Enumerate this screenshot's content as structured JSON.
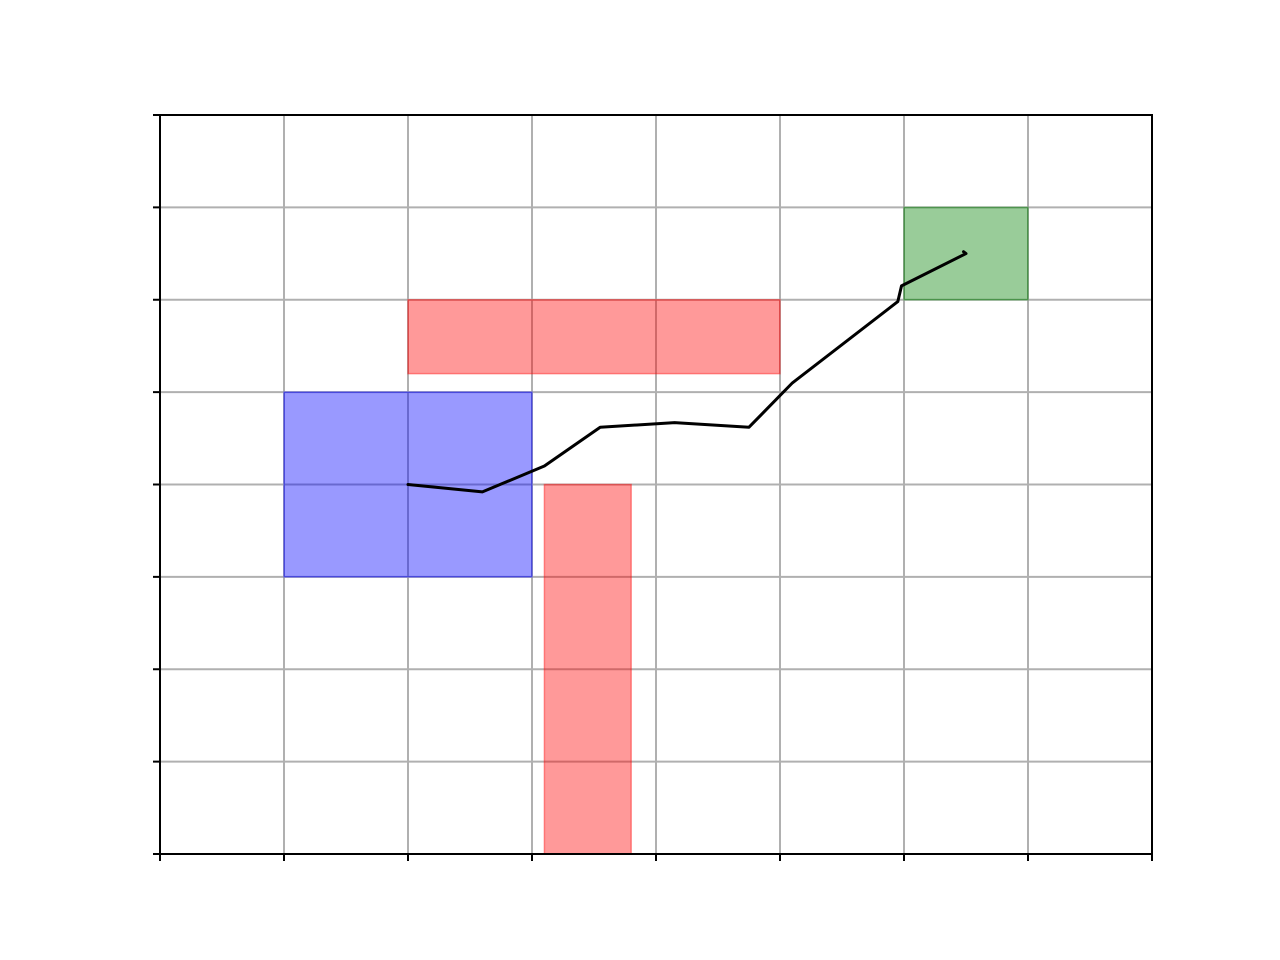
{
  "chart_data": {
    "type": "line",
    "title": "",
    "xlabel": "",
    "ylabel": "",
    "xlim": [
      0,
      8
    ],
    "ylim": [
      0,
      8
    ],
    "x_ticks": [
      0,
      1,
      2,
      3,
      4,
      5,
      6,
      7,
      8
    ],
    "y_ticks": [
      0,
      1,
      2,
      3,
      4,
      5,
      6,
      7,
      8
    ],
    "tick_labels_shown": false,
    "grid": true,
    "legend": "none",
    "regions": [
      {
        "kind": "start",
        "x0": 1,
        "x1": 3,
        "y0": 3,
        "y1": 5,
        "color": "#0000ff",
        "alpha": 0.4
      },
      {
        "kind": "goal",
        "x0": 6,
        "x1": 7,
        "y0": 6,
        "y1": 7,
        "color": "#008000",
        "alpha": 0.4
      },
      {
        "kind": "obstacle",
        "x0": 2,
        "x1": 5,
        "y0": 5.2,
        "y1": 6,
        "color": "#ff0000",
        "alpha": 0.4
      },
      {
        "kind": "obstacle",
        "x0": 3.1,
        "x1": 3.8,
        "y0": 0,
        "y1": 4,
        "color": "#ff0000",
        "alpha": 0.4
      }
    ],
    "series": [
      {
        "color": "#000000",
        "x": [
          2.0,
          2.6,
          3.1,
          3.55,
          4.15,
          4.75,
          5.1,
          5.95,
          5.98,
          6.5,
          6.48
        ],
        "y": [
          4.0,
          3.92,
          4.2,
          4.62,
          4.67,
          4.62,
          5.1,
          5.98,
          6.15,
          6.5,
          6.52
        ]
      }
    ]
  }
}
